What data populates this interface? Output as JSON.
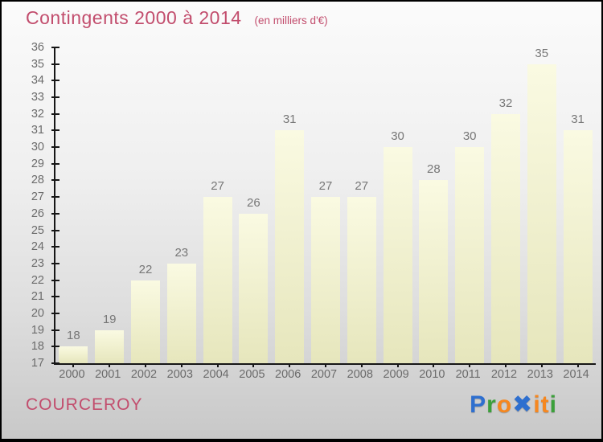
{
  "header": {
    "title": "Contingents 2000 à 2014",
    "subtitle": "(en milliers d'€)"
  },
  "footer": {
    "location": "COURCEROY"
  },
  "logo": {
    "brand": "Proxiti",
    "letters": [
      {
        "char": "P",
        "color": "#2e6fcf"
      },
      {
        "char": "r",
        "color": "#3ba03a"
      },
      {
        "char": "o",
        "color": "#f6871f"
      },
      {
        "char": "✖",
        "color": "#2e6fcf"
      },
      {
        "char": "i",
        "color": "#f6871f"
      },
      {
        "char": "t",
        "color": "#f6871f"
      },
      {
        "char": "i",
        "color": "#3ba03a"
      }
    ]
  },
  "colors": {
    "title": "#c24d6d",
    "bar_top": "#fafae2",
    "bar_bottom": "#e6e6bc",
    "axis": "#161616",
    "value_label": "#777777",
    "tick_label": "#6b6b6b"
  },
  "chart_data": {
    "type": "bar",
    "title": "Contingents 2000 à 2014",
    "subtitle": "(en milliers d'€)",
    "categories": [
      "2000",
      "2001",
      "2002",
      "2003",
      "2004",
      "2005",
      "2006",
      "2007",
      "2008",
      "2009",
      "2010",
      "2011",
      "2012",
      "2013",
      "2014"
    ],
    "values": [
      18,
      19,
      22,
      23,
      27,
      26,
      31,
      27,
      27,
      30,
      28,
      30,
      32,
      35,
      31
    ],
    "xlabel": "",
    "ylabel": "",
    "ylim": [
      17,
      36
    ],
    "ytick_step": 1,
    "grid": false,
    "legend": false,
    "bar_labels_shown": true
  }
}
